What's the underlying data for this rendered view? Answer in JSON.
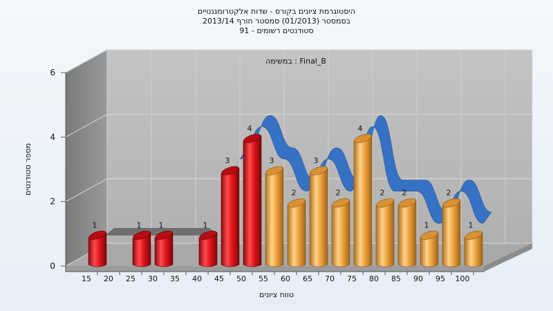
{
  "chart_data": {
    "type": "bar",
    "title_lines": [
      "היסטוגרמת ציונים בקורס - שדות אלקטרומגנטיים",
      "בסמסטר  (01/2013)  סמסטר חורף  2013/14",
      "סטודנטים רשומים - 91"
    ],
    "annotation": "במשימה : Final_B",
    "xlabel": "טווח ציונים",
    "ylabel": "מספר סטודנטים",
    "x_tick_labels": [
      "15",
      "20",
      "25",
      "30",
      "35",
      "40",
      "45",
      "50",
      "55",
      "60",
      "65",
      "70",
      "75",
      "80",
      "85",
      "90",
      "95",
      "100"
    ],
    "y_ticks": [
      0,
      2,
      4,
      6
    ],
    "ylim": [
      0,
      6
    ],
    "grid": true,
    "bars": [
      {
        "x": 15,
        "value": 1,
        "color": "#e2151b"
      },
      {
        "x": 25,
        "value": 1,
        "color": "#e2151b"
      },
      {
        "x": 30,
        "value": 1,
        "color": "#e2151b"
      },
      {
        "x": 40,
        "value": 1,
        "color": "#e2151b"
      },
      {
        "x": 45,
        "value": 3,
        "color": "#e2151b"
      },
      {
        "x": 50,
        "value": 4,
        "color": "#e2151b"
      },
      {
        "x": 55,
        "value": 3,
        "color": "#f0a640"
      },
      {
        "x": 60,
        "value": 2,
        "color": "#f0a640"
      },
      {
        "x": 65,
        "value": 3,
        "color": "#f0a640"
      },
      {
        "x": 70,
        "value": 2,
        "color": "#f0a640"
      },
      {
        "x": 75,
        "value": 4,
        "color": "#f0a640"
      },
      {
        "x": 80,
        "value": 2,
        "color": "#f0a640"
      },
      {
        "x": 85,
        "value": 2,
        "color": "#f0a640"
      },
      {
        "x": 90,
        "value": 1,
        "color": "#f0a640"
      },
      {
        "x": 95,
        "value": 2,
        "color": "#f0a640"
      },
      {
        "x": 100,
        "value": 1,
        "color": "#f0a640"
      }
    ],
    "colors": {
      "fail": "#e2151b",
      "pass": "#f0a640",
      "ribbon": "#2f6fc4",
      "ribbon_flat": "#6e6e6e",
      "wall_back": "#b5b5b5",
      "wall_left": "#8f8f8f",
      "floor": "#a6a6a6"
    }
  }
}
